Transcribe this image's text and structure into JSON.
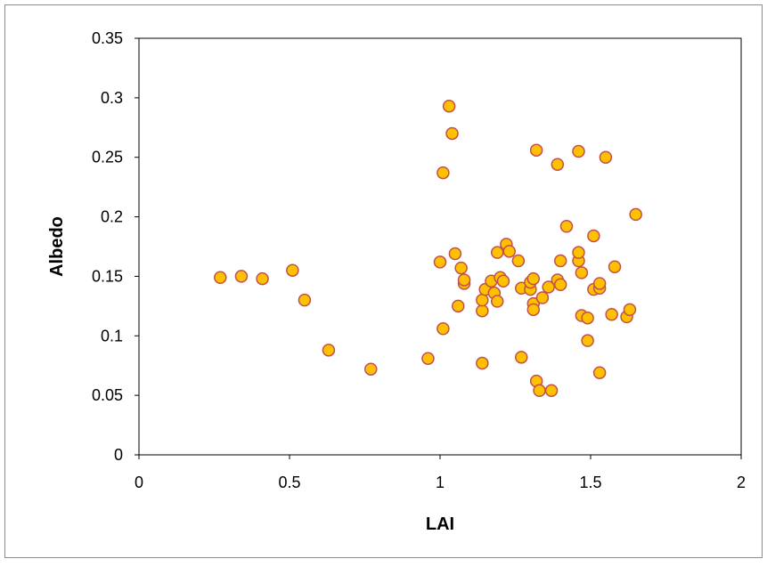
{
  "chart_data": {
    "type": "scatter",
    "title": "",
    "xlabel": "LAI",
    "ylabel": "Albedo",
    "xlim": [
      0,
      2
    ],
    "ylim": [
      0,
      0.35
    ],
    "xticks": [
      "0",
      "0.5",
      "1",
      "1.5",
      "2"
    ],
    "yticks": [
      "0",
      "0.05",
      "0.1",
      "0.15",
      "0.2",
      "0.25",
      "0.3",
      "0.35"
    ],
    "grid": false,
    "legend": "none",
    "marker_fill": "#FFC000",
    "marker_stroke": "#C0504D",
    "series": [
      {
        "x": [
          0.27,
          0.34,
          0.41,
          0.51,
          0.55,
          0.63,
          0.77,
          0.96,
          1.0,
          1.01,
          1.01,
          1.03,
          1.04,
          1.05,
          1.06,
          1.07,
          1.08,
          1.08,
          1.14,
          1.14,
          1.14,
          1.15,
          1.17,
          1.18,
          1.19,
          1.19,
          1.2,
          1.21,
          1.22,
          1.23,
          1.26,
          1.27,
          1.27,
          1.3,
          1.3,
          1.31,
          1.31,
          1.31,
          1.32,
          1.32,
          1.33,
          1.34,
          1.36,
          1.37,
          1.39,
          1.39,
          1.4,
          1.4,
          1.42,
          1.46,
          1.46,
          1.46,
          1.47,
          1.47,
          1.49,
          1.49,
          1.51,
          1.51,
          1.53,
          1.53,
          1.53,
          1.55,
          1.57,
          1.58,
          1.62,
          1.63,
          1.65
        ],
        "y": [
          0.149,
          0.15,
          0.148,
          0.155,
          0.13,
          0.088,
          0.072,
          0.081,
          0.162,
          0.237,
          0.106,
          0.293,
          0.27,
          0.169,
          0.125,
          0.157,
          0.144,
          0.147,
          0.121,
          0.13,
          0.077,
          0.139,
          0.146,
          0.136,
          0.129,
          0.17,
          0.149,
          0.146,
          0.177,
          0.171,
          0.163,
          0.14,
          0.082,
          0.139,
          0.145,
          0.148,
          0.127,
          0.122,
          0.256,
          0.062,
          0.054,
          0.132,
          0.141,
          0.054,
          0.244,
          0.147,
          0.143,
          0.163,
          0.192,
          0.163,
          0.17,
          0.255,
          0.153,
          0.117,
          0.115,
          0.096,
          0.139,
          0.184,
          0.14,
          0.144,
          0.069,
          0.25,
          0.118,
          0.158,
          0.116,
          0.122,
          0.202
        ]
      }
    ]
  }
}
